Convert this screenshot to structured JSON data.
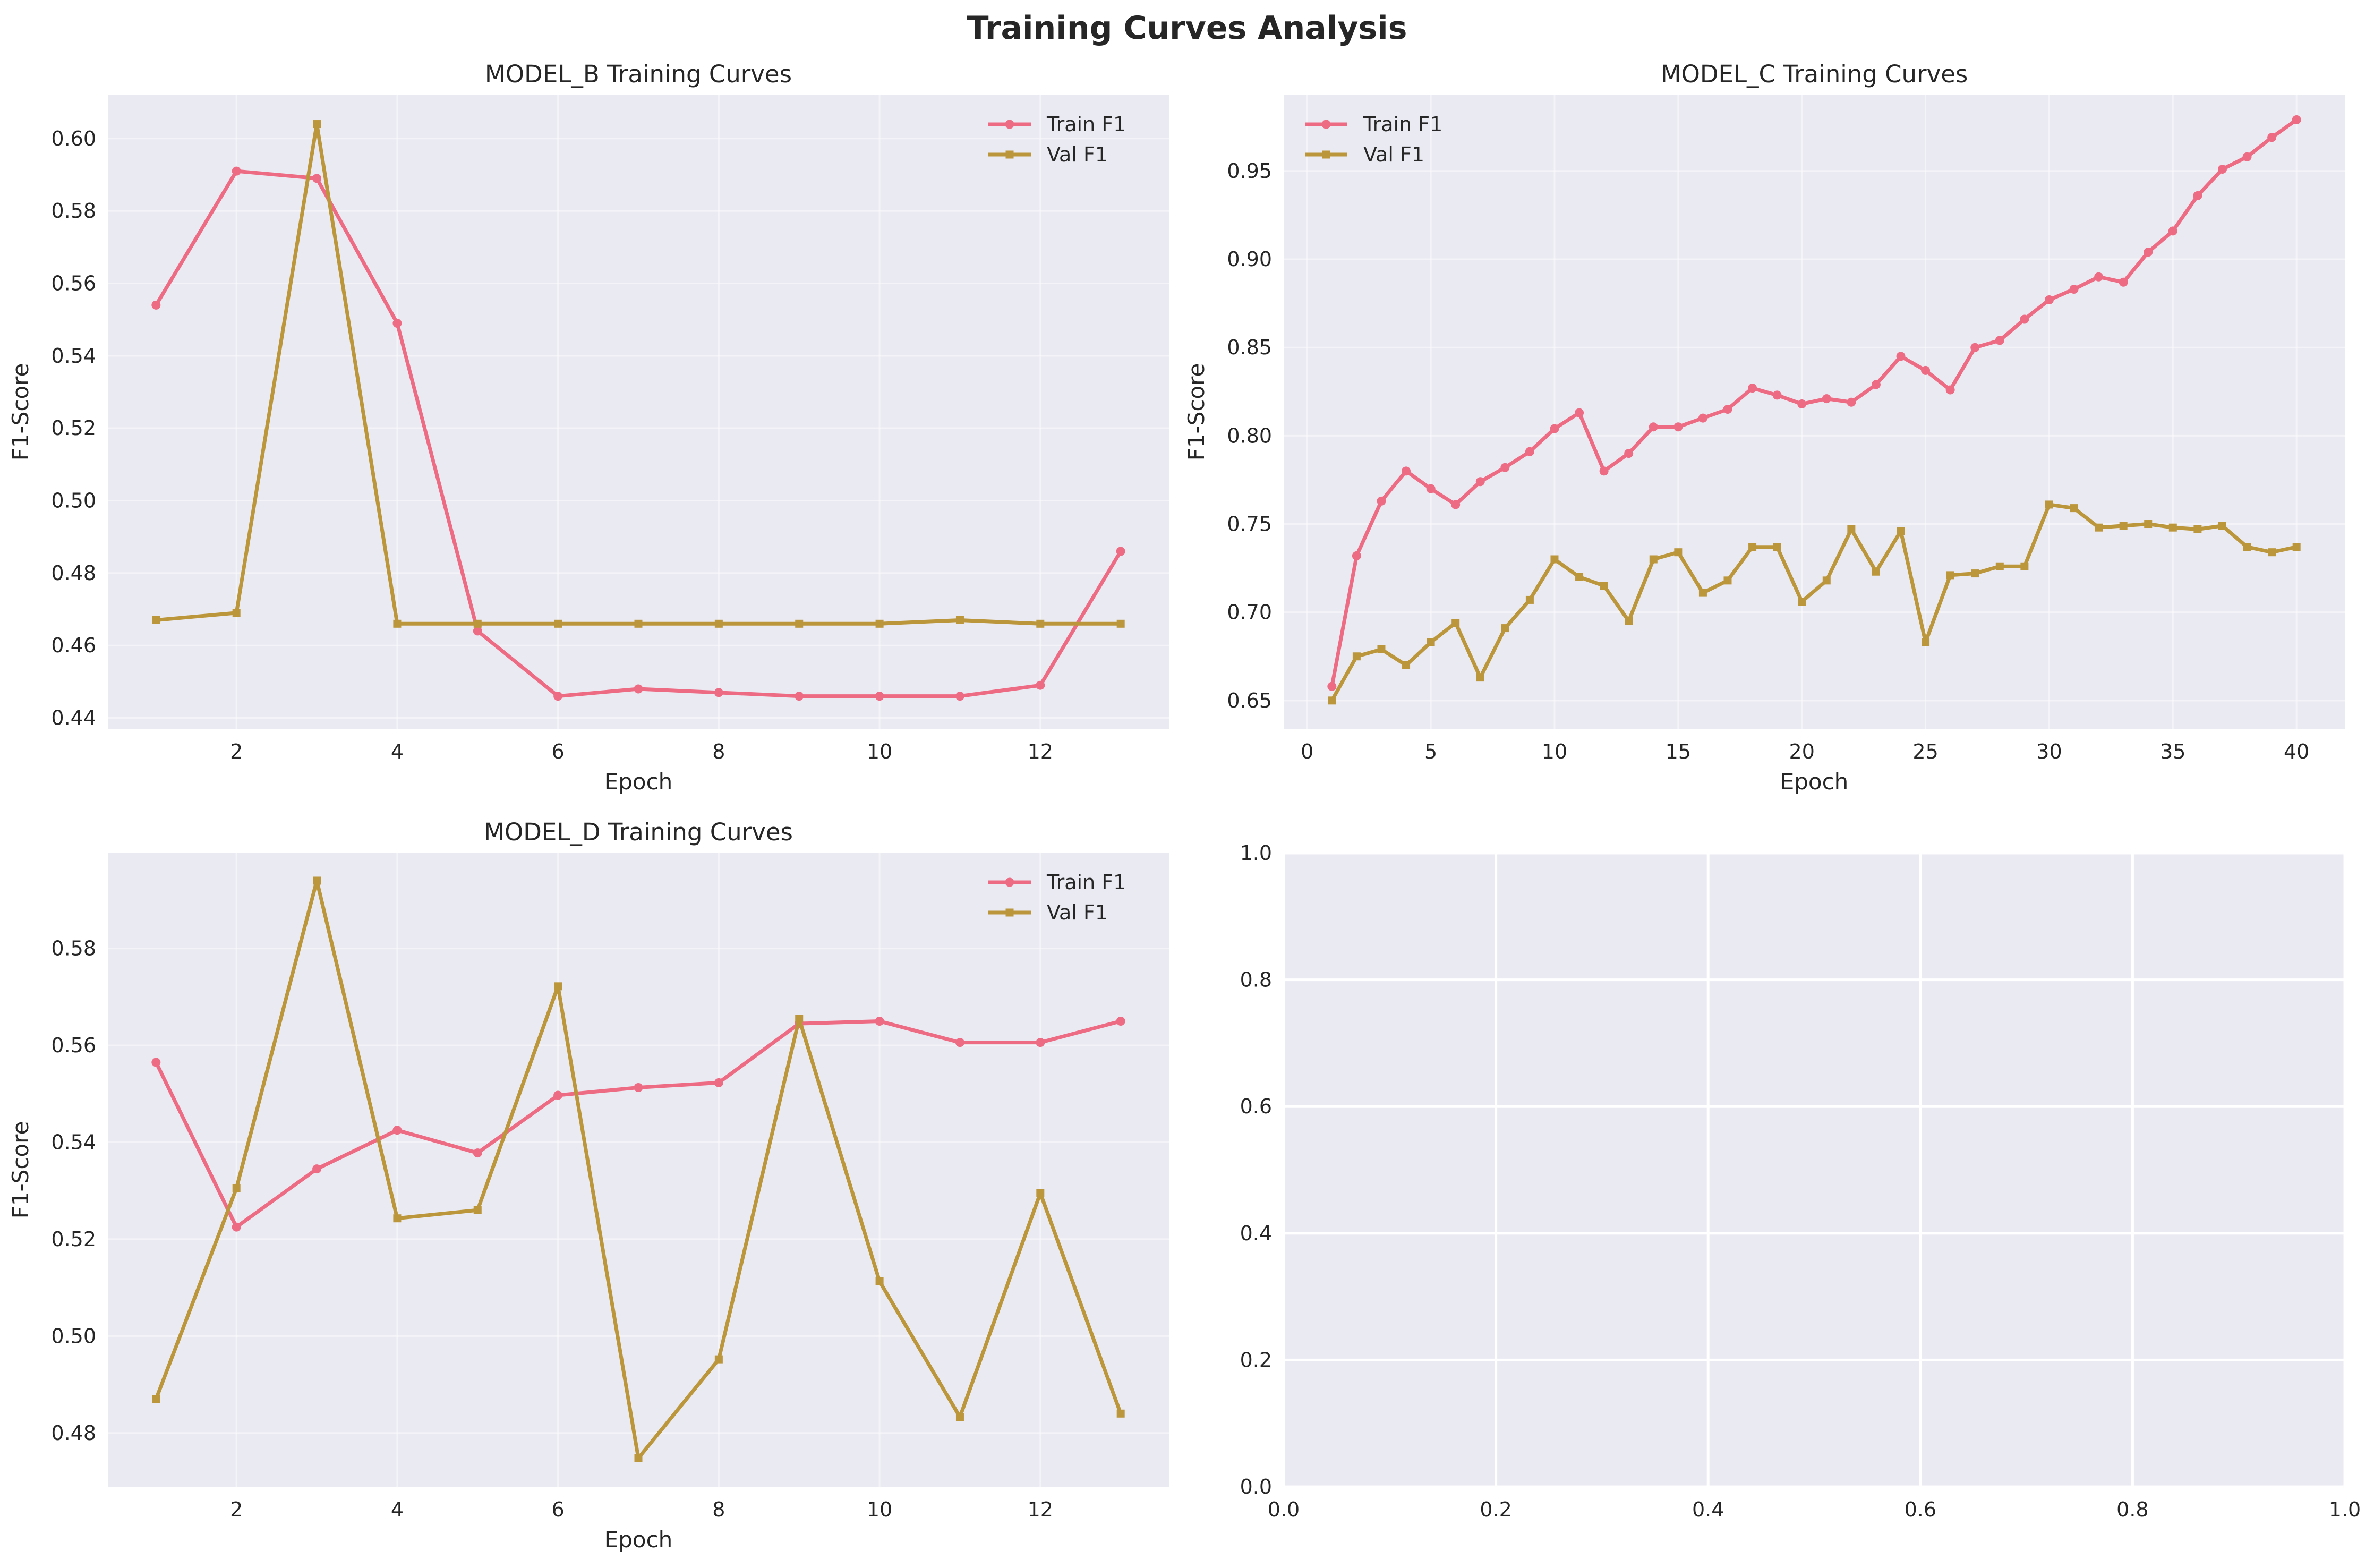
{
  "figure": {
    "title": "Training Curves Analysis"
  },
  "colors": {
    "train": "#ee6b84",
    "val": "#bc963a",
    "axes_bg": "#eaeaf2",
    "grid": "#ffffff"
  },
  "chart_data": [
    {
      "type": "line",
      "title": "MODEL_B Training Curves",
      "xlabel": "Epoch",
      "ylabel": "F1-Score",
      "xlim": [
        0.4,
        13.6
      ],
      "ylim": [
        0.437,
        0.612
      ],
      "xticks": [
        2,
        4,
        6,
        8,
        10,
        12
      ],
      "xtick_labels": [
        "2",
        "4",
        "6",
        "8",
        "10",
        "12"
      ],
      "yticks": [
        0.44,
        0.46,
        0.48,
        0.5,
        0.52,
        0.54,
        0.56,
        0.58,
        0.6
      ],
      "ytick_labels": [
        "0.44",
        "0.46",
        "0.48",
        "0.50",
        "0.52",
        "0.54",
        "0.56",
        "0.58",
        "0.60"
      ],
      "grid": true,
      "legend": "upper right",
      "x": [
        1,
        2,
        3,
        4,
        5,
        6,
        7,
        8,
        9,
        10,
        11,
        12,
        13
      ],
      "series": [
        {
          "name": "Train F1",
          "marker": "circle",
          "values": [
            0.554,
            0.591,
            0.589,
            0.549,
            0.464,
            0.446,
            0.448,
            0.447,
            0.446,
            0.446,
            0.446,
            0.449,
            0.486
          ]
        },
        {
          "name": "Val F1",
          "marker": "square",
          "values": [
            0.467,
            0.469,
            0.604,
            0.466,
            0.466,
            0.466,
            0.466,
            0.466,
            0.466,
            0.466,
            0.467,
            0.466,
            0.466
          ]
        }
      ]
    },
    {
      "type": "line",
      "title": "MODEL_C Training Curves",
      "xlabel": "Epoch",
      "ylabel": "F1-Score",
      "xlim": [
        -0.95,
        41.95
      ],
      "ylim": [
        0.634,
        0.993
      ],
      "xticks": [
        0,
        5,
        10,
        15,
        20,
        25,
        30,
        35,
        40
      ],
      "xtick_labels": [
        "0",
        "5",
        "10",
        "15",
        "20",
        "25",
        "30",
        "35",
        "40"
      ],
      "yticks": [
        0.65,
        0.7,
        0.75,
        0.8,
        0.85,
        0.9,
        0.95
      ],
      "ytick_labels": [
        "0.65",
        "0.70",
        "0.75",
        "0.80",
        "0.85",
        "0.90",
        "0.95"
      ],
      "grid": true,
      "legend": "upper left",
      "x": [
        1,
        2,
        3,
        4,
        5,
        6,
        7,
        8,
        9,
        10,
        11,
        12,
        13,
        14,
        15,
        16,
        17,
        18,
        19,
        20,
        21,
        22,
        23,
        24,
        25,
        26,
        27,
        28,
        29,
        30,
        31,
        32,
        33,
        34,
        35,
        36,
        37,
        38,
        39,
        40
      ],
      "series": [
        {
          "name": "Train F1",
          "marker": "circle",
          "values": [
            0.658,
            0.732,
            0.763,
            0.78,
            0.77,
            0.761,
            0.774,
            0.782,
            0.791,
            0.804,
            0.813,
            0.78,
            0.79,
            0.805,
            0.805,
            0.81,
            0.815,
            0.827,
            0.823,
            0.818,
            0.821,
            0.819,
            0.829,
            0.845,
            0.837,
            0.826,
            0.85,
            0.854,
            0.866,
            0.877,
            0.883,
            0.89,
            0.887,
            0.904,
            0.916,
            0.936,
            0.951,
            0.958,
            0.969,
            0.979
          ]
        },
        {
          "name": "Val F1",
          "marker": "square",
          "values": [
            0.65,
            0.675,
            0.679,
            0.67,
            0.683,
            0.694,
            0.663,
            0.691,
            0.707,
            0.73,
            0.72,
            0.715,
            0.695,
            0.73,
            0.734,
            0.711,
            0.718,
            0.737,
            0.737,
            0.706,
            0.718,
            0.747,
            0.723,
            0.746,
            0.683,
            0.721,
            0.722,
            0.726,
            0.726,
            0.761,
            0.759,
            0.748,
            0.749,
            0.75,
            0.748,
            0.747,
            0.749,
            0.737,
            0.734,
            0.737
          ]
        }
      ]
    },
    {
      "type": "line",
      "title": "MODEL_D Training Curves",
      "xlabel": "Epoch",
      "ylabel": "F1-Score",
      "xlim": [
        0.4,
        13.6
      ],
      "ylim": [
        0.4689,
        0.5997
      ],
      "xticks": [
        2,
        4,
        6,
        8,
        10,
        12
      ],
      "xtick_labels": [
        "2",
        "4",
        "6",
        "8",
        "10",
        "12"
      ],
      "yticks": [
        0.48,
        0.5,
        0.52,
        0.54,
        0.56,
        0.58
      ],
      "ytick_labels": [
        "0.48",
        "0.50",
        "0.52",
        "0.54",
        "0.56",
        "0.58"
      ],
      "grid": true,
      "legend": "upper right",
      "x": [
        1,
        2,
        3,
        4,
        5,
        6,
        7,
        8,
        9,
        10,
        11,
        12,
        13
      ],
      "series": [
        {
          "name": "Train F1",
          "marker": "circle",
          "values": [
            0.5565,
            0.5225,
            0.5345,
            0.5425,
            0.5378,
            0.5497,
            0.5513,
            0.5523,
            0.5645,
            0.565,
            0.5606,
            0.5606,
            0.565
          ]
        },
        {
          "name": "Val F1",
          "marker": "square",
          "values": [
            0.487,
            0.5305,
            0.594,
            0.5243,
            0.526,
            0.5722,
            0.4748,
            0.4952,
            0.5655,
            0.5113,
            0.4833,
            0.5295,
            0.484
          ]
        }
      ]
    },
    {
      "type": "line",
      "title": "",
      "xlabel": "",
      "ylabel": "",
      "xlim": [
        0,
        1
      ],
      "ylim": [
        0,
        1
      ],
      "xticks": [
        0,
        0.2,
        0.4,
        0.6,
        0.8,
        1.0
      ],
      "xtick_labels": [
        "0.0",
        "0.2",
        "0.4",
        "0.6",
        "0.8",
        "1.0"
      ],
      "yticks": [
        0,
        0.2,
        0.4,
        0.6,
        0.8,
        1.0
      ],
      "ytick_labels": [
        "0.0",
        "0.2",
        "0.4",
        "0.6",
        "0.8",
        "1.0"
      ],
      "grid": true,
      "legend": "none",
      "x": [],
      "series": []
    }
  ]
}
